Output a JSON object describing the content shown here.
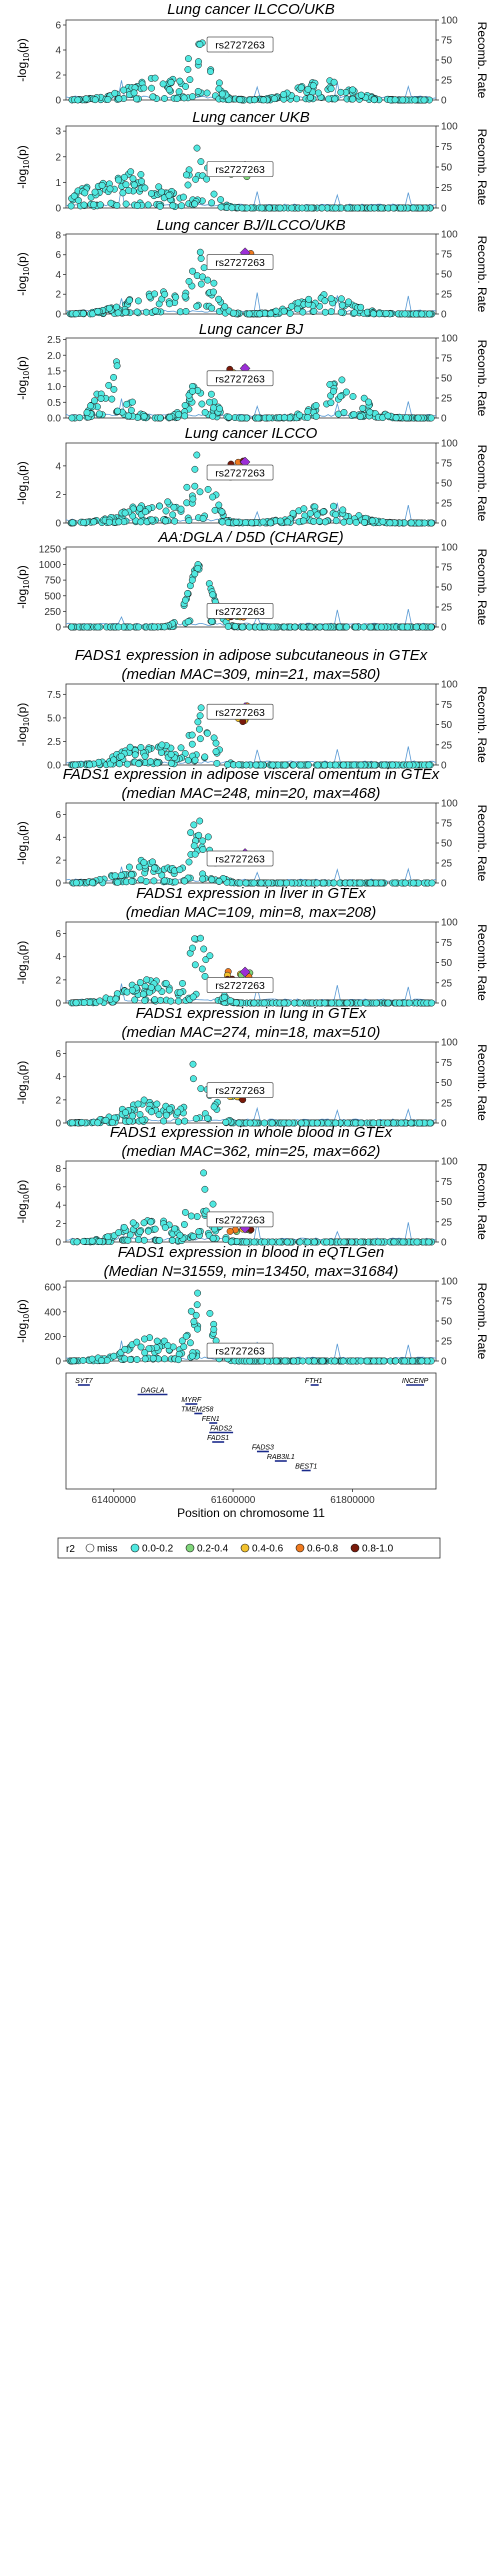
{
  "chart_data": {
    "type": "scatter",
    "lead_snp": "rs2727263",
    "y2_label": "Recomb. Rate",
    "y2_ticks": [
      "0",
      "25",
      "50",
      "75",
      "100"
    ],
    "y2_range": [
      0,
      100
    ],
    "x_range": [
      61320000,
      61940000
    ],
    "x_ticks": [
      61400000,
      61600000,
      61800000
    ],
    "x_tick_labels": [
      "61400000",
      "61600000",
      "61800000"
    ],
    "x_label": "Position on chromosome 11",
    "legend": {
      "title": "r2",
      "entries": [
        {
          "label": "miss",
          "color": "#ffffff"
        },
        {
          "label": "0.0-0.2",
          "color": "#4fe8e0"
        },
        {
          "label": "0.2-0.4",
          "color": "#7fd67a"
        },
        {
          "label": "0.4-0.6",
          "color": "#f2c22e"
        },
        {
          "label": "0.6-0.8",
          "color": "#f07a1e"
        },
        {
          "label": "0.8-1.0",
          "color": "#7a1a0a"
        }
      ]
    },
    "panels": [
      {
        "title1": "Lung cancer ILCCO/UKB",
        "title2": "",
        "ymax": 6.4,
        "yticks": [
          0,
          2,
          4,
          6
        ],
        "ytick_labels": [
          "0",
          "2",
          "4",
          "6"
        ],
        "lead_y": 4.55,
        "callout_y": 4.4,
        "shape": 2
      },
      {
        "title1": "Lung cancer UKB",
        "title2": "",
        "ymax": 3.2,
        "yticks": [
          0,
          1,
          2,
          3
        ],
        "ytick_labels": [
          "0",
          "1",
          "2",
          "3"
        ],
        "lead_y": 1.6,
        "callout_y": 1.5,
        "shape": 3
      },
      {
        "title1": "Lung cancer BJ/ILCCO/UKB",
        "title2": "",
        "ymax": 8.1,
        "yticks": [
          0,
          2,
          4,
          6,
          8
        ],
        "ytick_labels": [
          "0",
          "2",
          "4",
          "6",
          "8"
        ],
        "lead_y": 6.1,
        "callout_y": 5.2,
        "shape": 2
      },
      {
        "title1": "Lung cancer BJ",
        "title2": "",
        "ymax": 2.55,
        "yticks": [
          0,
          0.5,
          1,
          1.5,
          2,
          2.5
        ],
        "ytick_labels": [
          "0.0",
          "0.5",
          "1.0",
          "1.5",
          "2.0",
          "2.5"
        ],
        "lead_y": 1.55,
        "callout_y": 1.25,
        "shape": 4
      },
      {
        "title1": "Lung cancer ILCCO",
        "title2": "",
        "ymax": 5.6,
        "yticks": [
          0,
          2,
          4
        ],
        "ytick_labels": [
          "0",
          "2",
          "4"
        ],
        "lead_y": 4.2,
        "callout_y": 3.5,
        "shape": 2
      },
      {
        "title1": "AA:DGLA / D5D (CHARGE)",
        "title2": "",
        "ymax": 1280,
        "yticks": [
          0,
          250,
          500,
          750,
          1000,
          1250
        ],
        "ytick_labels": [
          "0",
          "250",
          "500",
          "750",
          "1000",
          "1250"
        ],
        "lead_y": 200,
        "callout_y": 250,
        "shape": 1
      },
      {
        "title1": "FADS1 expression in adipose subcutaneous in GTEx",
        "title2": "(median MAC=309, min=21, max=580)",
        "ymax": 8.6,
        "yticks": [
          0,
          2.5,
          5,
          7.5
        ],
        "ytick_labels": [
          "0.0",
          "2.5",
          "5.0",
          "7.5"
        ],
        "lead_y": 6.0,
        "callout_y": 5.6,
        "shape": 5
      },
      {
        "title1": "FADS1 expression in adipose visceral omentum in GTEx",
        "title2": "(median MAC=248, min=20, max=468)",
        "ymax": 7.0,
        "yticks": [
          0,
          2,
          4,
          6
        ],
        "ytick_labels": [
          "0",
          "2",
          "4",
          "6"
        ],
        "lead_y": 2.5,
        "callout_y": 2.1,
        "shape": 5
      },
      {
        "title1": "FADS1 expression in liver in GTEx",
        "title2": "(median MAC=109, min=8, max=208)",
        "ymax": 7.0,
        "yticks": [
          0,
          2,
          4,
          6
        ],
        "ytick_labels": [
          "0",
          "2",
          "4",
          "6"
        ],
        "lead_y": 2.6,
        "callout_y": 1.5,
        "shape": 5
      },
      {
        "title1": "FADS1 expression in lung in GTEx",
        "title2": "(median MAC=274, min=18, max=510)",
        "ymax": 7.0,
        "yticks": [
          0,
          2,
          4,
          6
        ],
        "ytick_labels": [
          "0",
          "2",
          "4",
          "6"
        ],
        "lead_y": 2.6,
        "callout_y": 2.8,
        "shape": 5
      },
      {
        "title1": "FADS1 expression in whole blood in GTEx",
        "title2": "(median MAC=362, min=25, max=662)",
        "ymax": 8.8,
        "yticks": [
          0,
          2,
          4,
          6,
          8
        ],
        "ytick_labels": [
          "0",
          "2",
          "4",
          "6",
          "8"
        ],
        "lead_y": 1.4,
        "callout_y": 2.4,
        "shape": 5
      },
      {
        "title1": "FADS1 expression in blood in eQTLGen",
        "title2": "(Median N=31559, min=13450, max=31684)",
        "ymax": 650,
        "yticks": [
          0,
          200,
          400,
          600
        ],
        "ytick_labels": [
          "0",
          "200",
          "400",
          "600"
        ],
        "lead_y": 60,
        "callout_y": 80,
        "shape": 5
      }
    ],
    "genes": [
      {
        "name": "SYT7",
        "start": 61340000,
        "end": 61360000,
        "row": 0
      },
      {
        "name": "DAGLA",
        "start": 61440000,
        "end": 61490000,
        "row": 1
      },
      {
        "name": "MYRF",
        "start": 61520000,
        "end": 61540000,
        "row": 2
      },
      {
        "name": "TMEM258",
        "start": 61535000,
        "end": 61545000,
        "row": 3
      },
      {
        "name": "FEN1",
        "start": 61560000,
        "end": 61565000,
        "row": 4
      },
      {
        "name": "FADS2",
        "start": 61560000,
        "end": 61600000,
        "row": 5
      },
      {
        "name": "FADS1",
        "start": 61565000,
        "end": 61585000,
        "row": 6
      },
      {
        "name": "FADS3",
        "start": 61640000,
        "end": 61660000,
        "row": 7
      },
      {
        "name": "RAB3IL1",
        "start": 61670000,
        "end": 61690000,
        "row": 8
      },
      {
        "name": "BEST1",
        "start": 61715000,
        "end": 61730000,
        "row": 9
      },
      {
        "name": "FTH1",
        "start": 61730000,
        "end": 61740000,
        "row": 0
      },
      {
        "name": "INCENP",
        "start": 61890000,
        "end": 61920000,
        "row": 0
      }
    ]
  }
}
